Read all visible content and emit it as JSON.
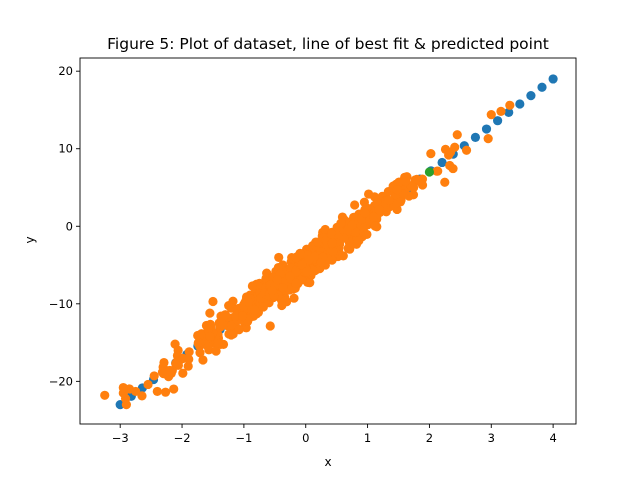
{
  "chart_data": {
    "type": "scatter",
    "title": "Figure 5: Plot of dataset, line of best fit & predicted point",
    "xlabel": "x",
    "ylabel": "y",
    "xlim": [
      -3.65,
      4.37
    ],
    "ylim": [
      -25.5,
      21.7
    ],
    "grid": false,
    "x_ticks": [
      -3,
      -2,
      -1,
      0,
      1,
      2,
      3,
      4
    ],
    "x_tick_labels": [
      "−3",
      "−2",
      "−1",
      "0",
      "1",
      "2",
      "3",
      "4"
    ],
    "y_ticks": [
      -20,
      -10,
      0,
      10,
      20
    ],
    "y_tick_labels": [
      "−20",
      "−10",
      "0",
      "10",
      "20"
    ],
    "colors": {
      "line": "#1f77b4",
      "data": "#ff7f0e",
      "predicted": "#2ca02c"
    },
    "series": [
      {
        "role": "line-of-best-fit",
        "color": "#1f77b4",
        "slope": 6.0,
        "intercept": -5.0,
        "x_range": [
          -3.0,
          4.0
        ],
        "n_points": 40
      },
      {
        "role": "dataset",
        "color": "#ff7f0e",
        "n_points": 700,
        "x_range": [
          -3.25,
          3.35
        ],
        "x_center": 0,
        "x_spread": 1.0,
        "noise_sd": 1.1,
        "points": [
          [
            -3.25,
            -21.8
          ],
          [
            -2.95,
            -21.5
          ],
          [
            -2.9,
            -23.0
          ],
          [
            -2.95,
            -20.8
          ],
          [
            -2.75,
            -21.3
          ],
          [
            -2.55,
            -20.4
          ],
          [
            -2.45,
            -19.3
          ],
          [
            -2.3,
            -19.0
          ],
          [
            -2.4,
            -21.3
          ],
          [
            -2.2,
            -18.6
          ],
          [
            -1.5,
            -9.7
          ],
          [
            -1.55,
            -11.2
          ],
          [
            -1.3,
            -11.4
          ],
          [
            -1.55,
            -14.2
          ],
          [
            -1.45,
            -16.1
          ],
          [
            3.0,
            14.4
          ],
          [
            3.3,
            15.6
          ],
          [
            2.95,
            11.3
          ],
          [
            2.6,
            9.8
          ],
          [
            2.45,
            11.8
          ]
        ]
      },
      {
        "role": "predicted-point",
        "color": "#2ca02c",
        "points": [
          [
            2.0,
            7.0
          ]
        ]
      }
    ]
  }
}
